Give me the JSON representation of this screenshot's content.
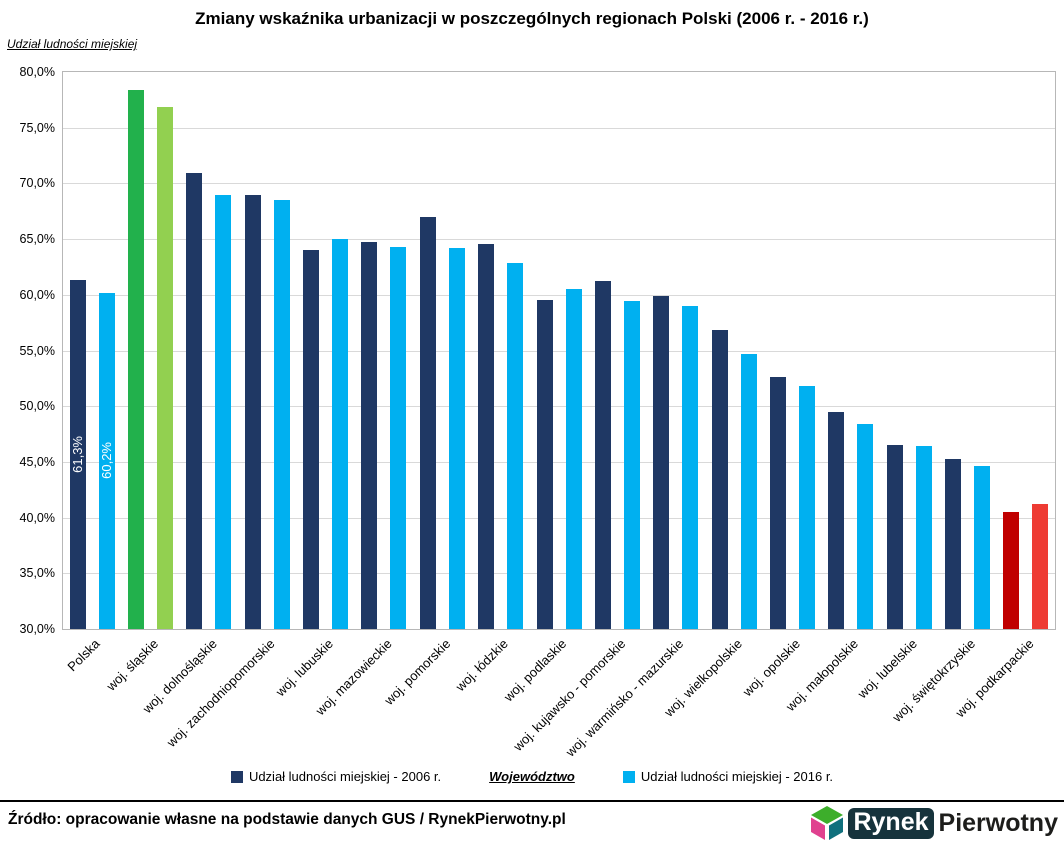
{
  "title": "Zmiany wskaźnika urbanizacji w poszczególnych regionach Polski (2006 r. - 2016 r.)",
  "y_axis_title": "Udział ludności miejskiej",
  "x_axis_title": "Województwo",
  "legend": {
    "series_2006": "Udział ludności miejskiej - 2006 r.",
    "series_2016": "Udział ludności miejskiej - 2016 r."
  },
  "footer": {
    "source": "Źródło: opracowanie własne na podstawie danych GUS / RynekPierwotny.pl",
    "logo_text_primary": "Rynek",
    "logo_text_secondary": "Pierwotny"
  },
  "colors": {
    "series_2006": "#1f3864",
    "series_2016": "#00b0f0",
    "highlight_green_2006": "#22b14c",
    "highlight_green_2016": "#92d050",
    "highlight_red_2006": "#c00000",
    "highlight_red_2016": "#ee3b33",
    "gridline": "#d9d9d9",
    "axis_border": "#b7b7b7"
  },
  "chart_data": {
    "type": "bar",
    "title": "Zmiany wskaźnika urbanizacji w poszczególnych regionach Polski (2006 r. - 2016 r.)",
    "xlabel": "Województwo",
    "ylabel": "Udział ludności miejskiej",
    "ylim": [
      30,
      80
    ],
    "ytick_step": 5,
    "grid": true,
    "legend_position": "bottom",
    "categories": [
      "Polska",
      "woj. śląskie",
      "woj. dolnośląskie",
      "woj. zachodniopomorskie",
      "woj. lubuskie",
      "woj. mazowieckie",
      "woj. pomorskie",
      "woj. łódzkie",
      "woj. podlaskie",
      "woj. kujawsko - pomorskie",
      "woj. warmińsko - mazurskie",
      "woj. wielkopolskie",
      "woj. opolskie",
      "woj. małopolskie",
      "woj. lubelskie",
      "woj. świętokrzyskie",
      "woj. podkarpackie"
    ],
    "series": [
      {
        "name": "Udział ludności miejskiej - 2006 r.",
        "color": "#1f3864",
        "values": [
          61.3,
          78.4,
          70.9,
          69.0,
          64.0,
          64.7,
          67.0,
          64.6,
          59.5,
          61.2,
          59.9,
          56.8,
          52.6,
          49.5,
          46.5,
          45.3,
          40.5
        ]
      },
      {
        "name": "Udział ludności miejskiej - 2016 r.",
        "color": "#00b0f0",
        "values": [
          60.2,
          76.9,
          69.0,
          68.5,
          65.0,
          64.3,
          64.2,
          62.9,
          60.5,
          59.4,
          59.0,
          54.7,
          51.8,
          48.4,
          46.4,
          44.6,
          41.2
        ]
      }
    ],
    "highlights": [
      {
        "index": 1,
        "category": "woj. śląskie",
        "colors": [
          "#22b14c",
          "#92d050"
        ]
      },
      {
        "index": 16,
        "category": "woj. podkarpackie",
        "colors": [
          "#c00000",
          "#ee3b33"
        ]
      }
    ],
    "data_labels": {
      "0": [
        "61,3%",
        "60,2%"
      ]
    }
  }
}
